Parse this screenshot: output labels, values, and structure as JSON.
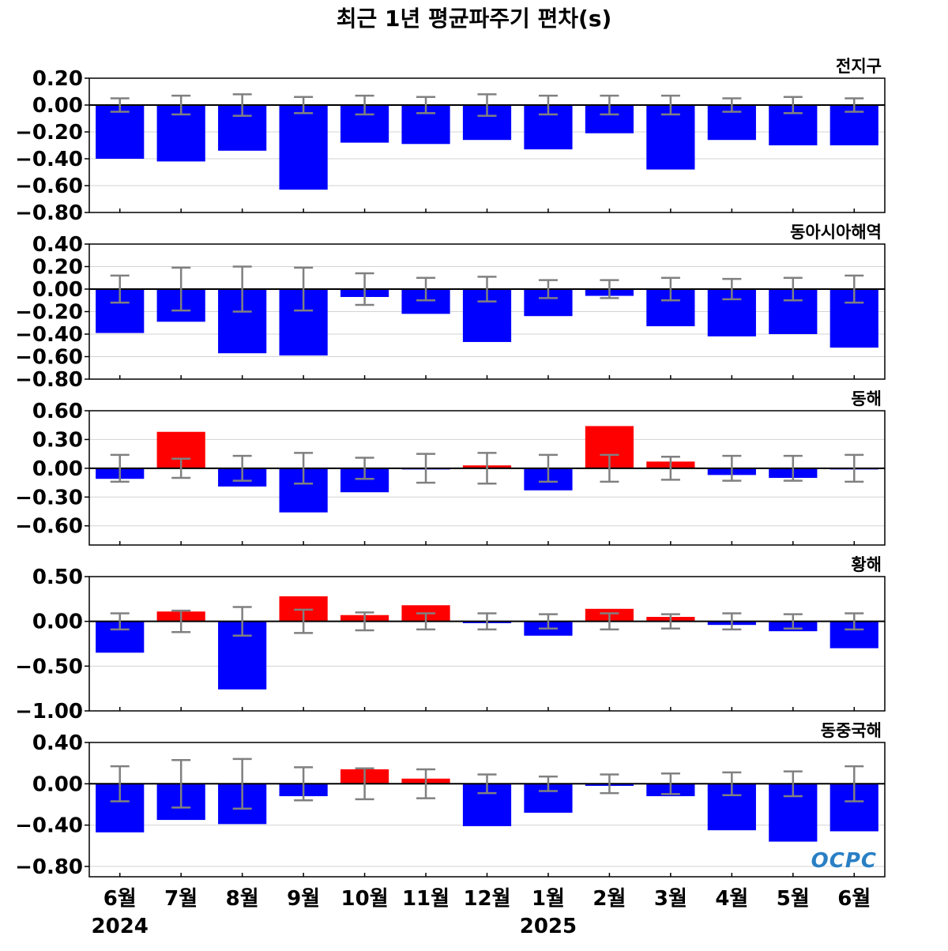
{
  "title": "최근 1년 평균파주기 편차(s)",
  "watermark": "OCPC",
  "colors": {
    "negative": "#0000ff",
    "positive": "#ff0000",
    "errorbar": "#808080",
    "grid": "#d3d3d3",
    "zero": "#000000"
  },
  "chart_data": [
    {
      "type": "bar",
      "panel_label": "전지구",
      "categories": [
        "6월",
        "7월",
        "8월",
        "9월",
        "10월",
        "11월",
        "12월",
        "1월",
        "2월",
        "3월",
        "4월",
        "5월",
        "6월"
      ],
      "years": [
        {
          "label": "2024",
          "at": 0
        },
        {
          "label": "2025",
          "at": 7
        }
      ],
      "values": [
        -0.4,
        -0.42,
        -0.34,
        -0.63,
        -0.28,
        -0.29,
        -0.26,
        -0.33,
        -0.21,
        -0.48,
        -0.26,
        -0.3,
        -0.3
      ],
      "errors": [
        0.05,
        0.07,
        0.08,
        0.06,
        0.07,
        0.06,
        0.08,
        0.07,
        0.07,
        0.07,
        0.05,
        0.06,
        0.05
      ],
      "ylim": [
        -0.8,
        0.2
      ],
      "yticks": [
        0.2,
        0.0,
        -0.2,
        -0.4,
        -0.6,
        -0.8
      ],
      "decimals": 2,
      "grid": true
    },
    {
      "type": "bar",
      "panel_label": "동아시아해역",
      "categories": [
        "6월",
        "7월",
        "8월",
        "9월",
        "10월",
        "11월",
        "12월",
        "1월",
        "2월",
        "3월",
        "4월",
        "5월",
        "6월"
      ],
      "values": [
        -0.39,
        -0.29,
        -0.57,
        -0.59,
        -0.07,
        -0.22,
        -0.47,
        -0.24,
        -0.06,
        -0.33,
        -0.42,
        -0.4,
        -0.52
      ],
      "errors": [
        0.12,
        0.19,
        0.2,
        0.19,
        0.14,
        0.1,
        0.11,
        0.08,
        0.08,
        0.1,
        0.09,
        0.1,
        0.12
      ],
      "ylim": [
        -0.8,
        0.4
      ],
      "yticks": [
        0.4,
        0.2,
        0.0,
        -0.2,
        -0.4,
        -0.6,
        -0.8
      ],
      "decimals": 2,
      "grid": true
    },
    {
      "type": "bar",
      "panel_label": "동해",
      "categories": [
        "6월",
        "7월",
        "8월",
        "9월",
        "10월",
        "11월",
        "12월",
        "1월",
        "2월",
        "3월",
        "4월",
        "5월",
        "6월"
      ],
      "values": [
        -0.11,
        0.38,
        -0.19,
        -0.46,
        -0.25,
        -0.01,
        0.03,
        -0.23,
        0.44,
        0.07,
        -0.07,
        -0.1,
        -0.01
      ],
      "errors": [
        0.14,
        0.1,
        0.13,
        0.16,
        0.11,
        0.15,
        0.16,
        0.14,
        0.14,
        0.12,
        0.13,
        0.13,
        0.14
      ],
      "ylim": [
        -0.8,
        0.6
      ],
      "yticks": [
        0.6,
        0.3,
        0.0,
        -0.3,
        -0.6
      ],
      "decimals": 2,
      "grid": true
    },
    {
      "type": "bar",
      "panel_label": "황해",
      "categories": [
        "6월",
        "7월",
        "8월",
        "9월",
        "10월",
        "11월",
        "12월",
        "1월",
        "2월",
        "3월",
        "4월",
        "5월",
        "6월"
      ],
      "values": [
        -0.35,
        0.11,
        -0.76,
        0.28,
        0.07,
        0.18,
        -0.02,
        -0.16,
        0.14,
        0.05,
        -0.04,
        -0.11,
        -0.3
      ],
      "errors": [
        0.09,
        0.12,
        0.16,
        0.13,
        0.1,
        0.09,
        0.09,
        0.08,
        0.09,
        0.08,
        0.09,
        0.08,
        0.09
      ],
      "ylim": [
        -1.0,
        0.5
      ],
      "yticks": [
        0.5,
        0.0,
        -0.5,
        -1.0
      ],
      "decimals": 2,
      "grid": true
    },
    {
      "type": "bar",
      "panel_label": "동중국해",
      "categories": [
        "6월",
        "7월",
        "8월",
        "9월",
        "10월",
        "11월",
        "12월",
        "1월",
        "2월",
        "3월",
        "4월",
        "5월",
        "6월"
      ],
      "values": [
        -0.47,
        -0.35,
        -0.39,
        -0.12,
        0.14,
        0.05,
        -0.41,
        -0.28,
        -0.02,
        -0.12,
        -0.45,
        -0.56,
        -0.46
      ],
      "errors": [
        0.17,
        0.23,
        0.24,
        0.16,
        0.15,
        0.14,
        0.09,
        0.07,
        0.09,
        0.1,
        0.11,
        0.12,
        0.17
      ],
      "ylim": [
        -0.9,
        0.4
      ],
      "yticks": [
        0.4,
        0.0,
        -0.4,
        -0.8
      ],
      "decimals": 2,
      "grid": true
    }
  ]
}
